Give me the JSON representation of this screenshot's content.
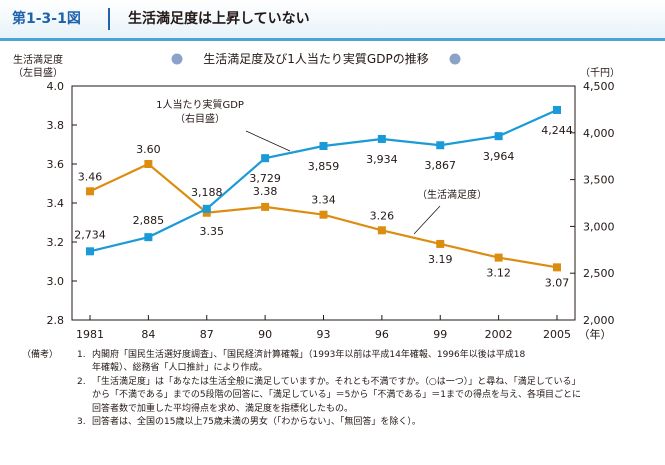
{
  "header": {
    "figure_label": "第1-3-1図",
    "title": "生活満足度は上昇していない"
  },
  "chart_data": {
    "type": "line",
    "title": "生活満足度及び1人当たり実質GDPの推移",
    "categories": [
      "1981",
      "84",
      "87",
      "90",
      "93",
      "96",
      "99",
      "2002",
      "2005"
    ],
    "x_unit": "（年）",
    "left_axis": {
      "label_line1": "生活満足度",
      "label_line2": "（左目盛）",
      "ylim": [
        2.8,
        4.0
      ],
      "ticks": [
        "4.0",
        "3.8",
        "3.6",
        "3.4",
        "3.2",
        "3.0",
        "2.8"
      ]
    },
    "right_axis": {
      "unit": "（千円）",
      "ylim": [
        2000,
        4500
      ],
      "ticks": [
        "4,500",
        "4,000",
        "3,500",
        "3,000",
        "2,500",
        "2,000"
      ]
    },
    "series": [
      {
        "name": "1人当たり実質GDP",
        "annotation_line1": "1人当たり実質GDP",
        "annotation_line2": "（右目盛）",
        "axis": "right",
        "color": "#1a9ad7",
        "marker": "square",
        "values": [
          2734,
          2885,
          3188,
          3729,
          3859,
          3934,
          3867,
          3964,
          4244
        ],
        "labels": [
          "2,734",
          "2,885",
          "3,188",
          "3,729",
          "3,859",
          "3,934",
          "3,867",
          "3,964",
          "4,244"
        ]
      },
      {
        "name": "（生活満足度）",
        "annotation_line1": "（生活満足度）",
        "axis": "left",
        "color": "#dc8d10",
        "marker": "square",
        "values": [
          3.46,
          3.6,
          3.35,
          3.38,
          3.34,
          3.26,
          3.19,
          3.12,
          3.07
        ],
        "labels": [
          "3.46",
          "3.60",
          "3.35",
          "3.38",
          "3.34",
          "3.26",
          "3.19",
          "3.12",
          "3.07"
        ]
      }
    ],
    "title_marker_color": "#8ca3c9"
  },
  "notes": {
    "heading": "（備考）",
    "items": [
      {
        "num": "1.",
        "lines": [
          "内閣府「国民生活選好度調査」、「国民経済計算確報」（1993年以前は平成14年確報、1996年以後は平成18",
          "年確報）、総務省「人口推計」により作成。"
        ]
      },
      {
        "num": "2.",
        "lines": [
          "「生活満足度」は「あなたは生活全般に満足していますか。それとも不満ですか。（○は一つ）」と尋ね、「満足している」",
          "から「不満である」までの5段階の回答に、「満足している」＝5から「不満である」＝1までの得点を与え、各項目ごとに",
          "回答者数で加重した平均得点を求め、満足度を指標化したもの。"
        ]
      },
      {
        "num": "3.",
        "lines": [
          "回答者は、全国の15歳以上75歳未満の男女（「わからない」、「無回答」を除く）。"
        ]
      }
    ]
  }
}
